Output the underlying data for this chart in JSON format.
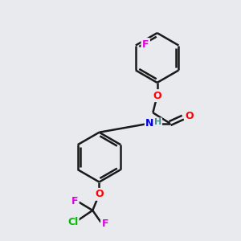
{
  "background_color": "#e8eaee",
  "bond_color": "#1a1a1a",
  "bond_width": 1.8,
  "atom_colors": {
    "F": "#e000e0",
    "O": "#ff0000",
    "N": "#0000e0",
    "Cl": "#00bb00",
    "H": "#4a9090",
    "C": "#1a1a1a"
  },
  "font_size": 9,
  "figsize": [
    3.0,
    3.0
  ],
  "dpi": 100,
  "xlim": [
    0,
    10
  ],
  "ylim": [
    0,
    10
  ]
}
